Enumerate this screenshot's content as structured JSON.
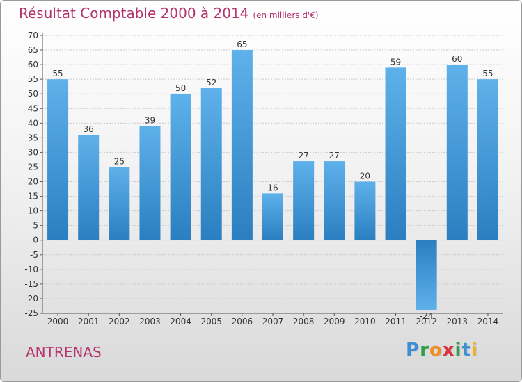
{
  "header": {
    "title": "Résultat Comptable 2000 à 2014",
    "subtitle": "(en milliers d'€)"
  },
  "footer": {
    "commune": "ANTRENAS",
    "logo_letters": [
      {
        "ch": "P",
        "color": "#3a8fd6"
      },
      {
        "ch": "r",
        "color": "#2e9e4a"
      },
      {
        "ch": "o",
        "color": "#f28c1e"
      },
      {
        "ch": "x",
        "color": "#d8343c"
      },
      {
        "ch": "i",
        "color": "#2e9e4a"
      },
      {
        "ch": "t",
        "color": "#3a8fd6"
      },
      {
        "ch": "i",
        "color": "#f2b01e"
      }
    ]
  },
  "colors": {
    "bar_light": "#5eb1ea",
    "bar_dark": "#2b7fc0",
    "accent": "#b5336b",
    "grid": "#c8c8c8",
    "text": "#333333"
  },
  "chart_data": {
    "type": "bar",
    "title": "Résultat Comptable 2000 à 2014",
    "xlabel": "",
    "ylabel": "",
    "ylim": [
      -25,
      70
    ],
    "ytick_step": 5,
    "grid": true,
    "categories": [
      "2000",
      "2001",
      "2002",
      "2003",
      "2004",
      "2005",
      "2006",
      "2007",
      "2008",
      "2009",
      "2010",
      "2011",
      "2012",
      "2013",
      "2014"
    ],
    "values": [
      55,
      36,
      25,
      39,
      50,
      52,
      65,
      16,
      27,
      27,
      20,
      59,
      -24,
      60,
      55
    ]
  }
}
